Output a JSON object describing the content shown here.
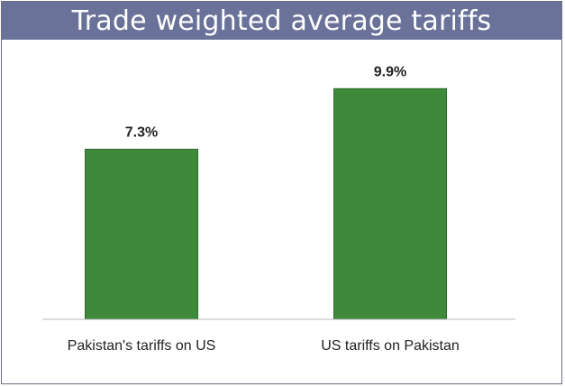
{
  "chart_data": {
    "type": "bar",
    "title": "Trade weighted average tariffs",
    "categories": [
      "Pakistan's tariffs on US",
      "US tariffs on Pakistan"
    ],
    "values": [
      7.3,
      9.9
    ],
    "value_labels": [
      "7.3%",
      "9.9%"
    ],
    "xlabel": "",
    "ylabel": "",
    "ylim": [
      0,
      10.8
    ],
    "grid": false,
    "legend": "none",
    "bar_color": "#3e8a3a",
    "bar_edge_color": "#2e6e2c",
    "title_bg": "#6a7299"
  }
}
